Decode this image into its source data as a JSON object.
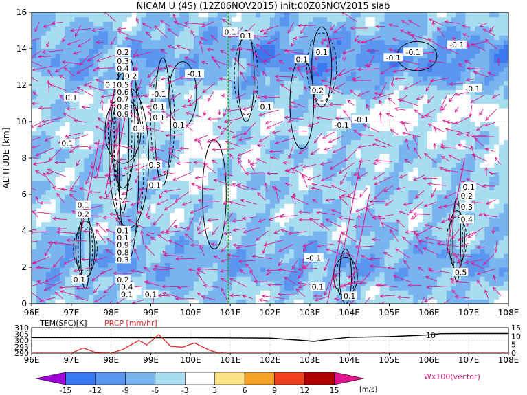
{
  "title": "NICAM U (4S) (12Z06NOV2015) init:00Z05NOV2015 slab",
  "colors": {
    "contour": "#000000",
    "vector": "#e0168c",
    "marker_line": "#19b319",
    "temp_line": "#000000",
    "precip_line": "#e03030",
    "grid": "#9a9a9a"
  },
  "chart_data": [
    {
      "type": "heatmap",
      "variable": "NICAM U (4S)",
      "xlabel": "",
      "ylabel": "ALTITUDE [km]",
      "xlim": [
        96,
        108
      ],
      "ylim": [
        0,
        16
      ],
      "x_ticks": [
        "96E",
        "97E",
        "98E",
        "99E",
        "100E",
        "101E",
        "102E",
        "103E",
        "104E",
        "105E",
        "106E",
        "107E",
        "108E"
      ],
      "y_ticks": [
        "0",
        "2",
        "4",
        "6",
        "8",
        "10",
        "12",
        "14",
        "16"
      ],
      "marker_longitude": 100.95,
      "contour_labels": [
        {
          "text": "0.1",
          "x": 101.0,
          "y": 14.9
        },
        {
          "text": "0.1",
          "x": 101.4,
          "y": 14.7
        },
        {
          "text": "0.2",
          "x": 98.3,
          "y": 13.8
        },
        {
          "text": "0.3",
          "x": 98.3,
          "y": 13.3
        },
        {
          "text": "0.4",
          "x": 98.3,
          "y": 12.9
        },
        {
          "text": "0.2",
          "x": 98.5,
          "y": 12.5
        },
        {
          "text": "0.1",
          "x": 98.0,
          "y": 12.0
        },
        {
          "text": "0.5",
          "x": 98.3,
          "y": 12.0
        },
        {
          "text": "0.6",
          "x": 98.3,
          "y": 11.6
        },
        {
          "text": "0.7",
          "x": 98.3,
          "y": 11.2
        },
        {
          "text": "0.8",
          "x": 98.3,
          "y": 10.8
        },
        {
          "text": "0.9",
          "x": 98.3,
          "y": 10.4
        },
        {
          "text": "-0.1",
          "x": 99.2,
          "y": 11.5
        },
        {
          "text": "0.1",
          "x": 99.2,
          "y": 10.8
        },
        {
          "text": "0.1",
          "x": 99.2,
          "y": 10.2
        },
        {
          "text": "0.3",
          "x": 98.7,
          "y": 9.6
        },
        {
          "text": "-0.1",
          "x": 100.1,
          "y": 12.6
        },
        {
          "text": "0.1",
          "x": 97.0,
          "y": 11.3
        },
        {
          "text": "0.1",
          "x": 96.9,
          "y": 8.8
        },
        {
          "text": "0.1",
          "x": 99.7,
          "y": 9.8
        },
        {
          "text": "0.1",
          "x": 101.9,
          "y": 10.8
        },
        {
          "text": "0.3",
          "x": 99.1,
          "y": 7.6
        },
        {
          "text": "0.1",
          "x": 99.1,
          "y": 6.5
        },
        {
          "text": "0.1",
          "x": 103.3,
          "y": 13.8
        },
        {
          "text": "0.1",
          "x": 102.8,
          "y": 13.4
        },
        {
          "text": "0.2",
          "x": 103.2,
          "y": 11.7
        },
        {
          "text": "-0.1",
          "x": 103.8,
          "y": 9.8
        },
        {
          "text": "-0.1",
          "x": 104.3,
          "y": 10.1
        },
        {
          "text": "-0.1",
          "x": 105.1,
          "y": 13.5
        },
        {
          "text": "-0.1",
          "x": 105.6,
          "y": 13.8
        },
        {
          "text": "-0.1",
          "x": 106.7,
          "y": 14.2
        },
        {
          "text": "-0.1",
          "x": 107.1,
          "y": 11.8
        },
        {
          "text": "0.1",
          "x": 107.0,
          "y": 6.4
        },
        {
          "text": "0.2",
          "x": 106.95,
          "y": 5.9
        },
        {
          "text": "0.3",
          "x": 106.95,
          "y": 5.3
        },
        {
          "text": "0.4",
          "x": 106.95,
          "y": 4.6
        },
        {
          "text": "0.5",
          "x": 106.8,
          "y": 1.7
        },
        {
          "text": "0.1",
          "x": 97.3,
          "y": 5.4
        },
        {
          "text": "0.2",
          "x": 97.3,
          "y": 4.9
        },
        {
          "text": "0.1",
          "x": 98.3,
          "y": 4.0
        },
        {
          "text": "0.1",
          "x": 98.3,
          "y": 3.6
        },
        {
          "text": "0.9",
          "x": 98.3,
          "y": 3.2
        },
        {
          "text": "0.8",
          "x": 98.3,
          "y": 2.8
        },
        {
          "text": "0.3",
          "x": 98.3,
          "y": 2.4
        },
        {
          "text": "0.2",
          "x": 98.3,
          "y": 1.3
        },
        {
          "text": "0.4",
          "x": 98.4,
          "y": 0.9
        },
        {
          "text": "0.1",
          "x": 98.4,
          "y": 0.5
        },
        {
          "text": "0.1",
          "x": 99.0,
          "y": 0.5
        },
        {
          "text": "0.1",
          "x": 97.2,
          "y": 1.3
        },
        {
          "text": "-0.1",
          "x": 103.1,
          "y": 2.5
        },
        {
          "text": "0.1",
          "x": 103.2,
          "y": 0.9
        },
        {
          "text": "0.1",
          "x": 104.0,
          "y": 0.4
        }
      ]
    },
    {
      "type": "line",
      "xlim": [
        96,
        108
      ],
      "left_axis_label": "TEM(SFC)[K]",
      "left_ticks": [
        "290",
        "295",
        "300",
        "305",
        "310"
      ],
      "right_axis_label": "PRCP [mm/hr]",
      "right_ticks": [
        "0",
        "5",
        "10",
        "15"
      ],
      "x_ticks": [
        "96E",
        "97E",
        "98E",
        "99E",
        "100E",
        "101E",
        "102E",
        "103E",
        "104E",
        "105E",
        "106E",
        "107E",
        "108E"
      ],
      "annotation": "10",
      "series": [
        {
          "name": "TEM(SFC)[K]",
          "x": [
            96.0,
            97.0,
            98.0,
            99.0,
            100.0,
            101.0,
            102.0,
            102.8,
            103.1,
            103.6,
            104.0,
            105.0,
            105.6,
            106.0,
            106.3,
            107.0,
            108.0
          ],
          "y": [
            302.2,
            302.2,
            302.2,
            302.1,
            302.1,
            302.0,
            301.8,
            300.0,
            299.2,
            301.2,
            302.4,
            303.0,
            303.8,
            304.4,
            305.3,
            305.4,
            305.4
          ]
        },
        {
          "name": "PRCP [mm/hr]",
          "x": [
            96.0,
            97.0,
            97.3,
            97.6,
            98.0,
            98.3,
            98.7,
            98.9,
            99.2,
            99.5,
            99.8,
            100.1,
            100.5,
            100.7,
            100.9,
            101.5,
            108.0
          ],
          "y": [
            0,
            0,
            3.0,
            0.5,
            0,
            2.2,
            7.5,
            4.8,
            11.0,
            4.0,
            3.5,
            6.0,
            1.5,
            0.2,
            0,
            0,
            0
          ]
        }
      ]
    },
    {
      "type": "bar",
      "role": "colorbar",
      "unit": "[m/s]",
      "ticks": [
        "-15",
        "-12",
        "-9",
        "-6",
        "-3",
        "3",
        "6",
        "9",
        "12",
        "15"
      ],
      "bin_colors": [
        "#a000d8",
        "#3a78f0",
        "#5a96f0",
        "#78b4f0",
        "#a8dcf0",
        "#ffffff",
        "#fae184",
        "#f4a326",
        "#f04020",
        "#b00000",
        "#e0168c"
      ],
      "vector_note": "Wx100(vector)"
    }
  ]
}
